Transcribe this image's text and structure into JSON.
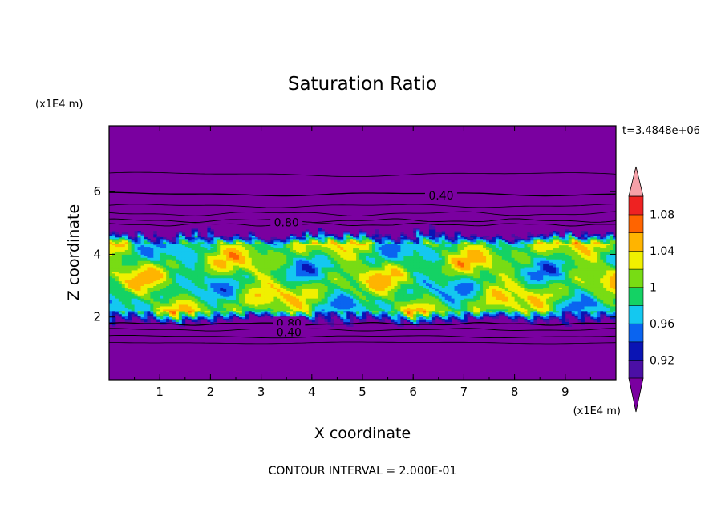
{
  "chart_data": {
    "type": "heatmap",
    "title": "Saturation Ratio",
    "xlabel": "X coordinate",
    "ylabel": "Z coordinate",
    "x_unit": "(x1E4 m)",
    "y_unit": "(x1E4 m)",
    "time_label": "t=3.4848e+06",
    "footer": "CONTOUR INTERVAL = 2.000E-01",
    "xlim": [
      0,
      10
    ],
    "ylim": [
      0,
      8.1
    ],
    "x_ticks": [
      "1",
      "2",
      "3",
      "4",
      "5",
      "6",
      "7",
      "8",
      "9"
    ],
    "y_ticks": [
      "2",
      "4",
      "6"
    ],
    "contour_labels": [
      {
        "text": "0.40",
        "x": 6.55,
        "z": 5.85
      },
      {
        "text": "0.80",
        "x": 3.5,
        "z": 5.0
      },
      {
        "text": "0.80",
        "x": 3.55,
        "z": 1.78
      },
      {
        "text": "0.40",
        "x": 3.55,
        "z": 1.5
      }
    ],
    "colorbar": {
      "levels": [
        0.9,
        0.92,
        0.94,
        0.96,
        0.98,
        1.0,
        1.02,
        1.04,
        1.06,
        1.08,
        1.1
      ],
      "colors": [
        "#7a00a0",
        "#4b0fa5",
        "#0a14b4",
        "#0a64f0",
        "#14c8f0",
        "#14d264",
        "#78dc14",
        "#f0f000",
        "#ffb400",
        "#ff6400",
        "#ee2222",
        "#f5a0a8"
      ],
      "tick_labels": [
        "0.92",
        "0.96",
        "1",
        "1.04",
        "1.08"
      ],
      "extend": "both"
    }
  }
}
